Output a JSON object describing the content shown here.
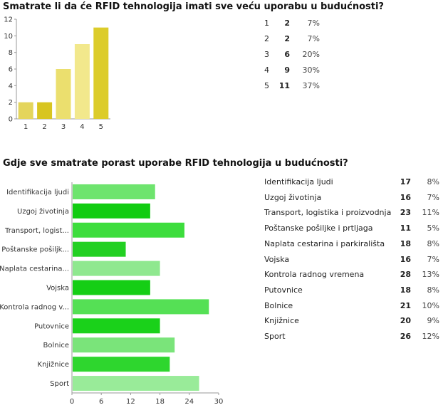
{
  "question1": {
    "title": "Smatrate li da će RFID tehnologija imati sve veću uporabu u budućnosti?",
    "chart_data": {
      "type": "bar",
      "categories": [
        "1",
        "2",
        "3",
        "4",
        "5"
      ],
      "values": [
        2,
        2,
        6,
        9,
        11
      ],
      "ylim": [
        0,
        12
      ],
      "yticks": [
        "0",
        "2",
        "4",
        "6",
        "8",
        "10",
        "12"
      ],
      "colors": [
        "#e4d55c",
        "#d8c520",
        "#ebdf6e",
        "#f2e88c",
        "#dccc2a"
      ]
    },
    "stats": [
      {
        "label": "1",
        "count": "2",
        "percent": "7%"
      },
      {
        "label": "2",
        "count": "2",
        "percent": "7%"
      },
      {
        "label": "3",
        "count": "6",
        "percent": "20%"
      },
      {
        "label": "4",
        "count": "9",
        "percent": "30%"
      },
      {
        "label": "5",
        "count": "11",
        "percent": "37%"
      }
    ]
  },
  "question2": {
    "title": "Gdje sve smatrate porast uporabe RFID tehnologija u budućnosti?",
    "chart_data": {
      "type": "bar",
      "orientation": "horizontal",
      "categories": [
        "Identifikacija ljudi",
        "Uzgoj životinja",
        "Transport, logist...",
        "Poštanske pošiljk...",
        "Naplata cestarina...",
        "Vojska",
        "Kontrola radnog v...",
        "Putovnice",
        "Bolnice",
        "Knjižnice",
        "Sport"
      ],
      "values": [
        17,
        16,
        23,
        11,
        18,
        16,
        28,
        18,
        21,
        20,
        26
      ],
      "xlim": [
        0,
        30
      ],
      "xticks": [
        "0",
        "6",
        "12",
        "18",
        "24",
        "30"
      ],
      "colors": [
        "#6ee46e",
        "#11cc11",
        "#3ddd3d",
        "#22d022",
        "#8fe88f",
        "#15ce15",
        "#55e055",
        "#1ad11a",
        "#7ae47a",
        "#2ed62e",
        "#99eb99"
      ]
    },
    "stats": [
      {
        "label": "Identifikacija ljudi",
        "count": "17",
        "percent": "8%"
      },
      {
        "label": "Uzgoj životinja",
        "count": "16",
        "percent": "7%"
      },
      {
        "label": "Transport, logistika i proizvodnja",
        "count": "23",
        "percent": "11%"
      },
      {
        "label": "Poštanske pošiljke i prtljaga",
        "count": "11",
        "percent": "5%"
      },
      {
        "label": "Naplata cestarina i parkirališta",
        "count": "18",
        "percent": "8%"
      },
      {
        "label": "Vojska",
        "count": "16",
        "percent": "7%"
      },
      {
        "label": "Kontrola radnog vremena",
        "count": "28",
        "percent": "13%"
      },
      {
        "label": "Putovnice",
        "count": "18",
        "percent": "8%"
      },
      {
        "label": "Bolnice",
        "count": "21",
        "percent": "10%"
      },
      {
        "label": "Knjižnice",
        "count": "20",
        "percent": "9%"
      },
      {
        "label": "Sport",
        "count": "26",
        "percent": "12%"
      }
    ]
  }
}
